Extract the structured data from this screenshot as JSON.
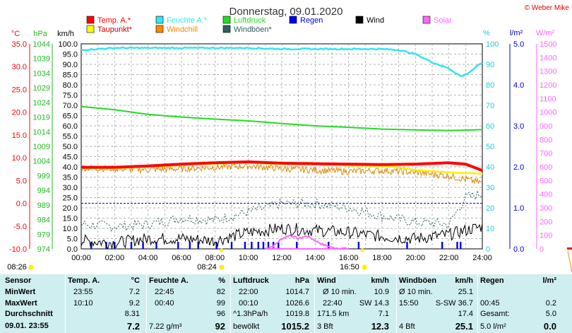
{
  "header": {
    "title": "Donnerstag, 09.01.2020",
    "credit": "© Weber Mike"
  },
  "legend": [
    {
      "label": "Temp. A.*",
      "color": "#ff0000"
    },
    {
      "label": "Feuchte A.*",
      "color": "#33e6f0"
    },
    {
      "label": "Luftdruck",
      "color": "#22dd22"
    },
    {
      "label": "Regen",
      "color": "#0000ee"
    },
    {
      "label": "Wind",
      "color": "#000000"
    },
    {
      "label": "Solar",
      "color": "#ff66ff"
    },
    {
      "label": "Taupunkt*",
      "color": "#ffff00"
    },
    {
      "label": "Windchill",
      "color": "#ff8800"
    },
    {
      "label": "Windböen*",
      "color": "#2f5f5f"
    }
  ],
  "axes": {
    "temp": {
      "unit": "°C",
      "ticks": [
        "35.0",
        "30.0",
        "25.0",
        "20.0",
        "15.0",
        "10.0",
        "5.0",
        "0.0",
        "-5.0",
        "-10.0"
      ],
      "color": "#ff0000"
    },
    "hpa": {
      "unit": "hPa",
      "ticks": [
        "1044",
        "1039",
        "1034",
        "1029",
        "1024",
        "1019",
        "1014",
        "1009",
        "1004",
        "999",
        "994",
        "989",
        "984",
        "979",
        "974"
      ],
      "color": "#22bb22"
    },
    "kmh": {
      "unit": "km/h",
      "ticks": [
        "100.0",
        "95.0",
        "90.0",
        "85.0",
        "80.0",
        "75.0",
        "70.0",
        "65.0",
        "60.0",
        "55.0",
        "50.0",
        "45.0",
        "40.0",
        "35.0",
        "30.0",
        "25.0",
        "20.0",
        "15.0",
        "10.0",
        "5.0",
        "0.0"
      ]
    },
    "pct": {
      "unit": "%",
      "ticks": [
        "100",
        "90",
        "80",
        "70",
        "60",
        "50",
        "40",
        "30",
        "20",
        "10",
        "0"
      ],
      "color": "#22ccdd"
    },
    "lm2": {
      "unit": "l/m²",
      "ticks": [
        "5.0",
        "4.0",
        "3.0",
        "2.0",
        "1.0",
        "0.0"
      ],
      "color": "#0000cc"
    },
    "wm2": {
      "unit": "W/m²",
      "ticks": [
        "1500",
        "1400",
        "1300",
        "1200",
        "1100",
        "1000",
        "900",
        "800",
        "700",
        "600",
        "500",
        "400",
        "300",
        "200",
        "100",
        "0"
      ],
      "color": "#ff66ff"
    },
    "time_ticks": [
      "00:00",
      "02:00",
      "04:00",
      "06:00",
      "08:00",
      "10:00",
      "12:00",
      "14:00",
      "16:00",
      "18:00",
      "20:00",
      "22:00",
      "24:00"
    ],
    "sun": {
      "sunrise": "08:24",
      "sunset": "16:50",
      "moon_left": "08:26"
    }
  },
  "chart_data": {
    "type": "line",
    "title": "Donnerstag, 09.01.2020",
    "x_unit": "hour",
    "series": [
      {
        "name": "Luftdruck",
        "axis": "hPa",
        "x": [
          0,
          2,
          4,
          6,
          8,
          10,
          12,
          14,
          16,
          18,
          20,
          22,
          24
        ],
        "values": [
          1022.6,
          1021.5,
          1019.9,
          1019.0,
          1018.3,
          1017.7,
          1016.8,
          1016.0,
          1015.5,
          1014.9,
          1014.6,
          1014.4,
          1014.7
        ]
      },
      {
        "name": "Feuchte A.",
        "axis": "%",
        "x": [
          0,
          2,
          4,
          6,
          8,
          10,
          12,
          14,
          16,
          18,
          19,
          20,
          21,
          22,
          22.75,
          23.2,
          24
        ],
        "values": [
          97,
          98,
          98,
          98,
          98,
          98,
          97.5,
          97.5,
          97.5,
          97.5,
          97,
          95,
          91,
          88,
          84,
          86,
          91
        ]
      },
      {
        "name": "Temp. A.",
        "axis": "°C",
        "x": [
          0,
          2,
          4,
          6,
          8,
          10,
          12,
          14,
          16,
          18,
          20,
          22,
          23,
          24
        ],
        "values": [
          7.9,
          7.9,
          8.2,
          8.6,
          8.9,
          9.1,
          8.8,
          8.7,
          8.6,
          8.5,
          8.6,
          8.9,
          8.6,
          7.2
        ]
      },
      {
        "name": "Taupunkt",
        "axis": "°C",
        "x": [
          0,
          2,
          4,
          6,
          8,
          10,
          12,
          14,
          16,
          18,
          19,
          20,
          22,
          24
        ],
        "values": [
          7.7,
          7.7,
          8.0,
          8.4,
          8.7,
          8.9,
          8.6,
          8.5,
          8.3,
          8.2,
          7.9,
          7.3,
          6.8,
          6.5
        ]
      },
      {
        "name": "Windchill",
        "axis": "°C",
        "x": [
          0,
          2,
          4,
          6,
          8,
          10,
          12,
          14,
          16,
          18,
          20,
          22,
          24
        ],
        "values": [
          7.8,
          7.6,
          7.4,
          7.6,
          7.9,
          8.2,
          7.6,
          7.3,
          7.0,
          7.2,
          6.8,
          6.0,
          4.5
        ]
      },
      {
        "name": "Wind",
        "axis": "km/h",
        "x": [
          0,
          2,
          4,
          6,
          8,
          10,
          12,
          14,
          16,
          18,
          20,
          22,
          24
        ],
        "values": [
          4,
          3,
          5,
          5,
          4,
          8,
          10,
          9,
          8,
          6,
          5,
          7,
          11
        ]
      },
      {
        "name": "Windböen",
        "axis": "km/h",
        "x": [
          0,
          2,
          4,
          6,
          8,
          10,
          12,
          14,
          16,
          18,
          20,
          22,
          23,
          24
        ],
        "values": [
          12,
          11,
          12,
          15,
          14,
          18,
          22,
          22,
          20,
          16,
          13,
          12,
          25,
          27
        ]
      },
      {
        "name": "Solar",
        "axis": "W/m²",
        "x": [
          11,
          11.5,
          12,
          12.5,
          13,
          13.5,
          14,
          14.5,
          15,
          16
        ],
        "values": [
          0,
          20,
          75,
          100,
          75,
          95,
          60,
          30,
          10,
          0
        ]
      }
    ],
    "xlim": [
      0,
      24
    ],
    "grid": true
  },
  "stats": {
    "columns": [
      {
        "head": "Sensor",
        "unit": ""
      },
      {
        "head": "Temp. A.",
        "unit": "°C"
      },
      {
        "head": "Feuchte A.",
        "unit": "%"
      },
      {
        "head": "Luftdruck",
        "unit": "hPa"
      },
      {
        "head": "Wind",
        "unit": "km/h"
      },
      {
        "head": "Windböen",
        "unit": "km/h"
      },
      {
        "head": "Regen",
        "unit": "l/m²"
      }
    ],
    "rows": [
      {
        "label": "MinWert",
        "cells": [
          [
            "23:55",
            "7.2"
          ],
          [
            "22:45",
            "82"
          ],
          [
            "22:00",
            "1014.7"
          ],
          [
            "Ø 10 min.",
            "10.9"
          ],
          [
            "Ø 10 min.",
            "25.1"
          ],
          [
            "",
            ""
          ]
        ]
      },
      {
        "label": "MaxWert",
        "cells": [
          [
            "10:10",
            "9.2"
          ],
          [
            "00:40",
            "99"
          ],
          [
            "00:10",
            "1026.6"
          ],
          [
            "22:40",
            "SW 14.3"
          ],
          [
            "15:50",
            "S-SW 36.7"
          ],
          [
            "00:45",
            "0.2"
          ]
        ]
      },
      {
        "label": "Durchschnitt",
        "cells": [
          [
            "",
            "8.31"
          ],
          [
            "",
            "96"
          ],
          [
            "^1.3hPa/h",
            "1019.8"
          ],
          [
            "171.5 km",
            "7.1"
          ],
          [
            "",
            "17.4"
          ],
          [
            "Gesamt:",
            "5.0"
          ]
        ]
      },
      {
        "label": "09.01. 23:55",
        "cells": [
          [
            "",
            "7.2"
          ],
          [
            "7.22 g/m³",
            "92"
          ],
          [
            "bewölkt",
            "1015.2"
          ],
          [
            "3 Bft",
            "12.3"
          ],
          [
            "4 Bft",
            "25.1"
          ],
          [
            "5.0 l/m²",
            "0.0"
          ]
        ]
      }
    ]
  }
}
